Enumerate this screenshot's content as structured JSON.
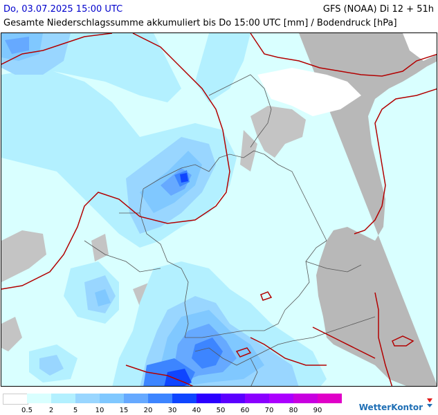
{
  "header": {
    "datetime": "Do, 03.07.2025 15:00 UTC",
    "model_run": "GFS (NOAA) Di 12 + 51h",
    "title": "Gesamte Niederschlagssumme akkumuliert bis Do 15:00 UTC [mm] / Bodendruck [hPa]"
  },
  "colors": {
    "land_bg": "#d9ffff",
    "sea_no_data": "#c0c0c0",
    "isobar": "#b20000",
    "border": "#555555"
  },
  "legend": {
    "labels": [
      "0.5",
      "2",
      "5",
      "10",
      "15",
      "20",
      "30",
      "40",
      "50",
      "60",
      "70",
      "80",
      "90"
    ],
    "colors": [
      "#ffffff",
      "#d9ffff",
      "#b3f0ff",
      "#99d6ff",
      "#80c8ff",
      "#66a9ff",
      "#3d85ff",
      "#0f45ff",
      "#2b00ff",
      "#5b00ff",
      "#8a00ff",
      "#ab00ff",
      "#c800e0",
      "#e000c8"
    ]
  },
  "brand": {
    "name": "WetterKontor"
  }
}
